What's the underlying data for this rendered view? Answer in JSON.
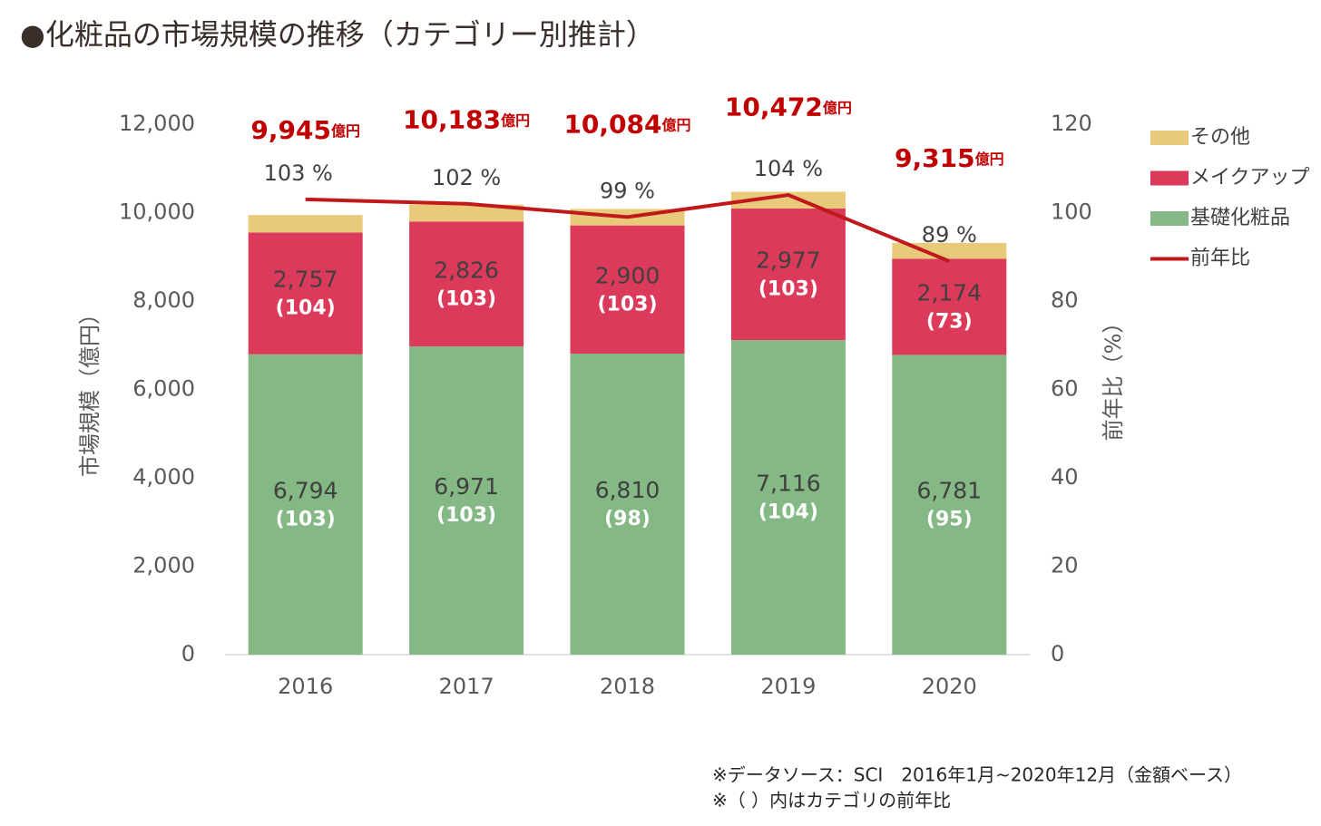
{
  "chart_data": {
    "type": "stacked-bar-line",
    "title": "●化粧品の市場規模の推移（カテゴリー別推計）",
    "ylabel": "市場規模（億円）",
    "y2label": "前年比（%）",
    "categories": [
      "2016",
      "2017",
      "2018",
      "2019",
      "2020"
    ],
    "series": [
      {
        "name": "基礎化粧品",
        "color": "#84b884",
        "values": [
          6794,
          6971,
          6810,
          7116,
          6781
        ],
        "value_labels": [
          "6,794",
          "6,971",
          "6,810",
          "7,116",
          "6,781"
        ],
        "sub_labels": [
          "(103)",
          "(103)",
          "(98)",
          "(104)",
          "(95)"
        ]
      },
      {
        "name": "メイクアップ",
        "color": "#dc3a5a",
        "values": [
          2757,
          2826,
          2900,
          2977,
          2174
        ],
        "value_labels": [
          "2,757",
          "2,826",
          "2,900",
          "2,977",
          "2,174"
        ],
        "sub_labels": [
          "(104)",
          "(103)",
          "(103)",
          "(103)",
          "(73)"
        ]
      },
      {
        "name": "その他",
        "color": "#e9ca7a",
        "values": [
          394,
          386,
          374,
          379,
          360
        ]
      },
      {
        "name": "前年比",
        "color": "#c0191c",
        "axis": "y2",
        "type": "line",
        "values": [
          103,
          102,
          99,
          104,
          89
        ],
        "value_labels": [
          "103 %",
          "102 %",
          "99 %",
          "104 %",
          "89 %"
        ]
      }
    ],
    "totals": {
      "values": [
        9945,
        10183,
        10084,
        10472,
        9315
      ],
      "value_labels": [
        "9,945",
        "10,183",
        "10,084",
        "10,472",
        "9,315"
      ],
      "unit": "億円",
      "color": "#c00000"
    },
    "ylim": [
      0,
      12000
    ],
    "yticks": [
      0,
      {
        "value": 2000,
        "label": "2,000"
      },
      {
        "value": 4000,
        "label": "4,000"
      },
      {
        "value": 6000,
        "label": "6,000"
      },
      {
        "value": 8000,
        "label": "8,000"
      },
      {
        "value": 10000,
        "label": "10,000"
      },
      {
        "value": 12000,
        "label": "12,000"
      }
    ],
    "y2lim": [
      0,
      120
    ],
    "y2ticks": [
      0,
      20,
      40,
      60,
      80,
      100,
      120
    ],
    "legend": "right",
    "notes": [
      "※データソース：SCI　2016年1月~2020年12月（金額ベース）",
      "※（ ）内はカテゴリの前年比"
    ]
  }
}
